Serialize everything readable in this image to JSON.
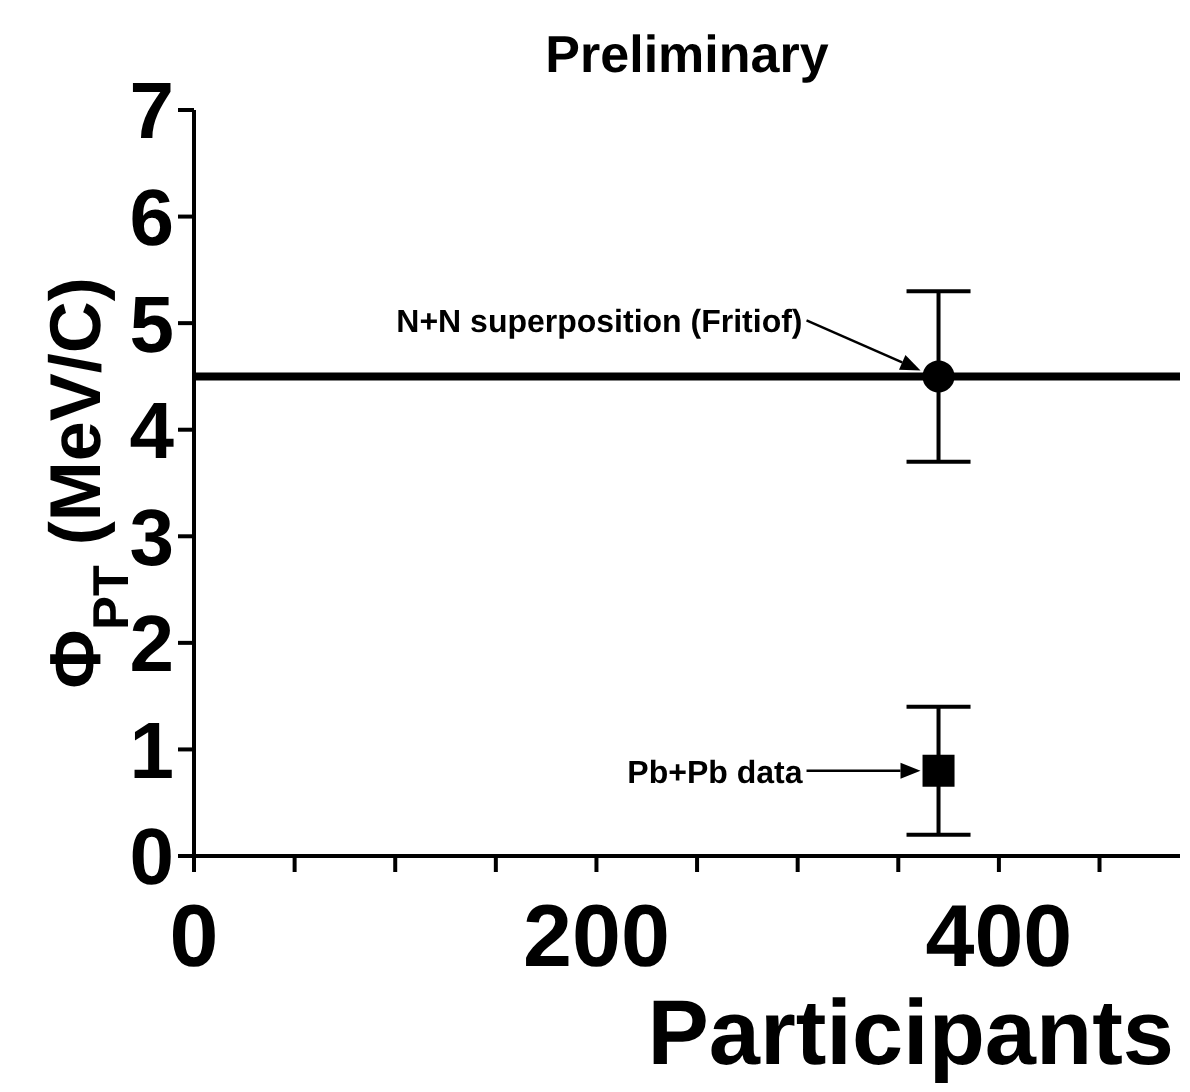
{
  "chart_data": {
    "type": "scatter",
    "title": "Preliminary",
    "xlabel": "Participants",
    "ylabel": "Φ$_{PT}$ (MeV/C)",
    "xlim": [
      0,
      490
    ],
    "xticks": [
      0,
      {
        "value": 50,
        "label": null
      },
      {
        "value": 100,
        "label": null
      },
      {
        "value": 150,
        "label": null
      },
      200,
      {
        "value": 250,
        "label": null
      },
      {
        "value": 300,
        "label": null
      },
      {
        "value": 350,
        "label": null
      },
      400,
      {
        "value": 450,
        "label": null
      }
    ],
    "ylim": [
      0,
      7
    ],
    "yticks": [
      0,
      1,
      2,
      3,
      4,
      5,
      6,
      7
    ],
    "series": [
      {
        "color": "#000000",
        "marker": "circle",
        "x": [
          370
        ],
        "values": [
          4.5
        ],
        "errors": [
          [
            3.7,
            5.3
          ]
        ]
      },
      {
        "color": "#000000",
        "marker": "square",
        "x": [
          370
        ],
        "values": [
          0.8
        ],
        "errors": [
          [
            0.2,
            1.4
          ]
        ]
      }
    ],
    "ref_lines": [
      {
        "axis": "y",
        "value": 4.5,
        "color": "#000000"
      }
    ],
    "annotations": [
      "N+N superposition (Fritiof)",
      "Pb+Pb data"
    ],
    "grid": false,
    "legend": false
  }
}
